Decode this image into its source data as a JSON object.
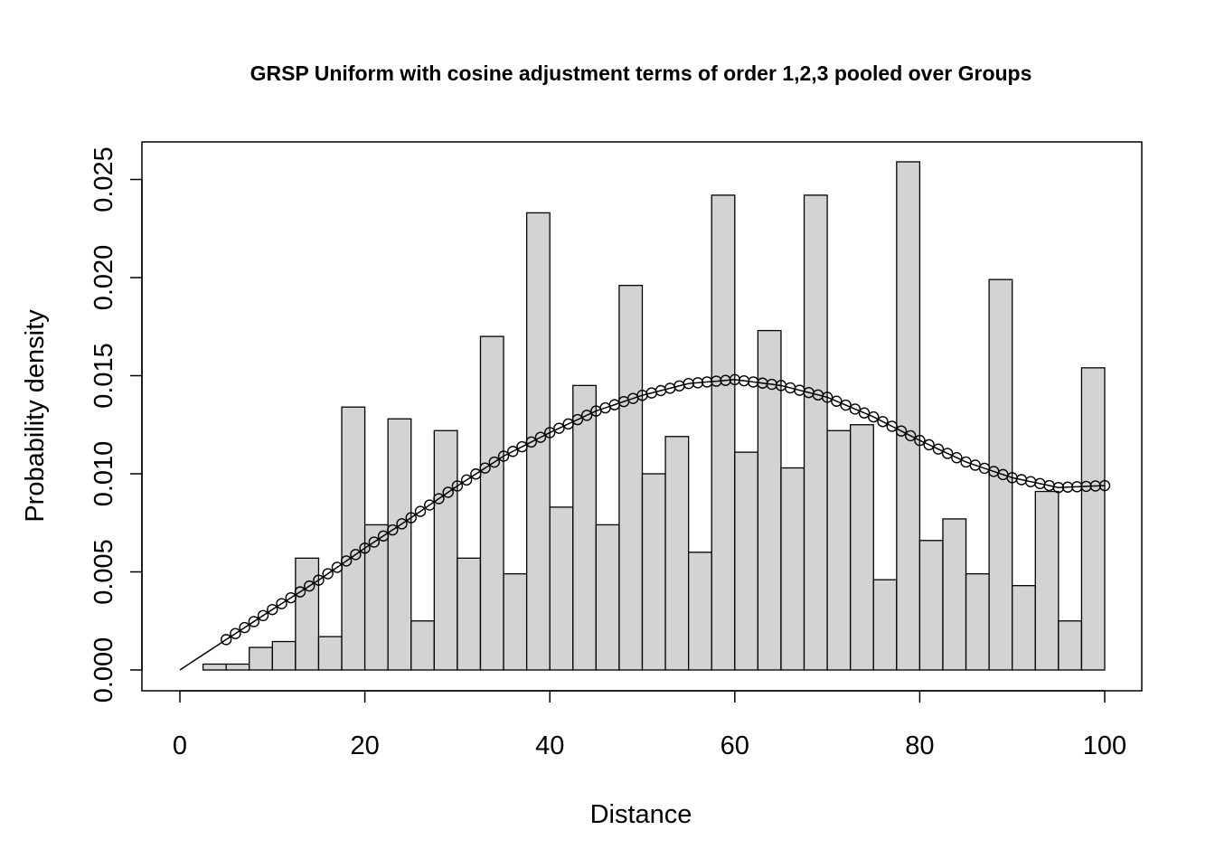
{
  "chart_data": {
    "type": "bar",
    "title": "GRSP Uniform with cosine adjustment terms of order 1,2,3  pooled over Groups",
    "xlabel": "Distance",
    "ylabel": "Probability density",
    "xlim": [
      0,
      100
    ],
    "ylim": [
      0,
      0.026
    ],
    "x_ticks": [
      "0",
      "20",
      "40",
      "60",
      "80",
      "100"
    ],
    "y_ticks": [
      "0.000",
      "0.005",
      "0.010",
      "0.015",
      "0.020",
      "0.025"
    ],
    "bin_width": 2.5,
    "bins_start": [
      0,
      2.5,
      5,
      7.5,
      10,
      12.5,
      15,
      17.5,
      20,
      22.5,
      25,
      27.5,
      30,
      32.5,
      35,
      37.5,
      40,
      42.5,
      45,
      47.5,
      50,
      52.5,
      55,
      57.5,
      60,
      62.5,
      65,
      67.5,
      70,
      72.5,
      75,
      77.5,
      80,
      82.5,
      85,
      87.5,
      90,
      92.5,
      95,
      97.5
    ],
    "values": [
      0.0,
      0.0003,
      0.0003,
      0.00115,
      0.00145,
      0.0057,
      0.0017,
      0.0134,
      0.0074,
      0.0128,
      0.0025,
      0.0122,
      0.0057,
      0.017,
      0.0049,
      0.0233,
      0.0083,
      0.0145,
      0.0074,
      0.0196,
      0.01,
      0.0119,
      0.006,
      0.0242,
      0.0111,
      0.0173,
      0.0103,
      0.0242,
      0.0122,
      0.0125,
      0.0046,
      0.0259,
      0.0066,
      0.0077,
      0.0049,
      0.0199,
      0.0043,
      0.0091,
      0.0025,
      0.0154
    ],
    "fitted_line": {
      "x": [
        0,
        5,
        10,
        15,
        20,
        25,
        30,
        35,
        40,
        45,
        50,
        55,
        60,
        65,
        70,
        75,
        80,
        85,
        90,
        95,
        100
      ],
      "y": [
        0.0,
        0.00155,
        0.00308,
        0.00458,
        0.00621,
        0.00776,
        0.00938,
        0.0109,
        0.0121,
        0.0132,
        0.014,
        0.0146,
        0.0148,
        0.0145,
        0.0139,
        0.0129,
        0.0117,
        0.0106,
        0.0098,
        0.0093,
        0.0094
      ]
    },
    "fitted_points": {
      "x_start": 5,
      "x_end": 100,
      "step": 1
    },
    "colors": {
      "bar_fill": "#d3d3d3",
      "stroke": "#000000"
    }
  }
}
